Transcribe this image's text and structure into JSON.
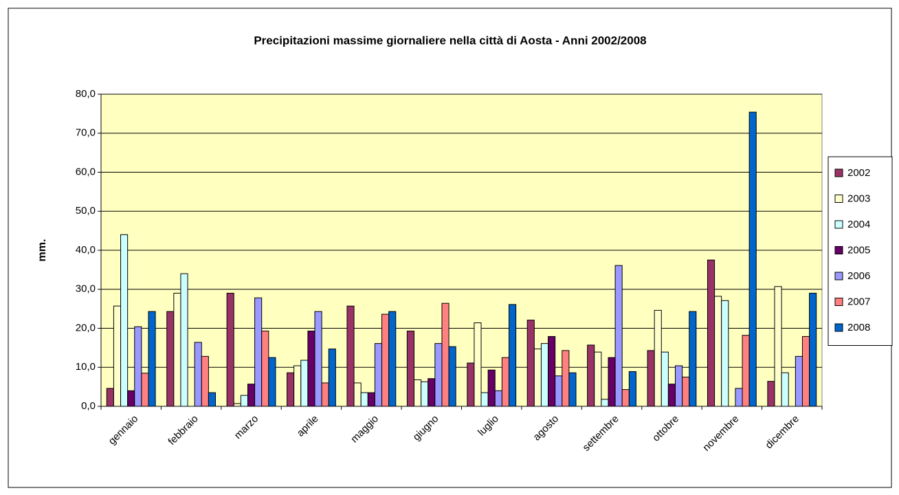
{
  "chart_data": {
    "type": "bar",
    "title": "Precipitazioni massime giornaliere nella città di Aosta - Anni 2002/2008",
    "y_label": "mm.",
    "categories": [
      "gennaio",
      "febbraio",
      "marzo",
      "aprile",
      "maggio",
      "giugno",
      "luglio",
      "agosto",
      "settembre",
      "ottobre",
      "novembre",
      "dicembre"
    ],
    "series": [
      {
        "name": "2002",
        "color": "#993366",
        "values": [
          4.6,
          24.3,
          29.0,
          8.6,
          25.7,
          19.3,
          11.1,
          22.1,
          15.7,
          14.3,
          37.5,
          6.4
        ]
      },
      {
        "name": "2003",
        "color": "#ffffcc",
        "values": [
          25.7,
          29.0,
          0.7,
          10.4,
          6.0,
          6.8,
          21.4,
          14.7,
          13.9,
          24.6,
          28.2,
          30.7
        ]
      },
      {
        "name": "2004",
        "color": "#ccffff",
        "values": [
          44.0,
          34.0,
          2.8,
          11.8,
          3.5,
          6.3,
          3.5,
          16.1,
          1.8,
          13.9,
          27.1,
          8.6
        ]
      },
      {
        "name": "2005",
        "color": "#660066",
        "values": [
          4.0,
          0,
          5.7,
          19.3,
          3.5,
          7.1,
          9.3,
          17.9,
          12.5,
          5.7,
          0,
          0
        ]
      },
      {
        "name": "2006",
        "color": "#9999ff",
        "values": [
          20.4,
          16.4,
          27.8,
          24.3,
          16.1,
          16.1,
          4.0,
          7.8,
          36.1,
          10.4,
          4.6,
          12.8
        ]
      },
      {
        "name": "2007",
        "color": "#ff8080",
        "values": [
          8.5,
          12.8,
          19.3,
          6.0,
          23.6,
          26.4,
          12.5,
          14.3,
          4.3,
          7.5,
          18.2,
          17.9
        ]
      },
      {
        "name": "2008",
        "color": "#0066cc",
        "values": [
          24.3,
          3.5,
          12.5,
          14.7,
          24.3,
          15.3,
          26.1,
          8.6,
          8.9,
          24.3,
          75.4,
          29.0
        ]
      }
    ],
    "ylim": [
      0,
      80
    ],
    "yticks": [
      {
        "value": 0,
        "label": "0,0"
      },
      {
        "value": 10,
        "label": "10,0"
      },
      {
        "value": 20,
        "label": "20,0"
      },
      {
        "value": 30,
        "label": "30,0"
      },
      {
        "value": 40,
        "label": "40,0"
      },
      {
        "value": 50,
        "label": "50,0"
      },
      {
        "value": 60,
        "label": "60,0"
      },
      {
        "value": 70,
        "label": "70,0"
      },
      {
        "value": 80,
        "label": "80,0"
      }
    ],
    "grid": true,
    "legend": "right",
    "plot_background": "#ffffc0"
  }
}
